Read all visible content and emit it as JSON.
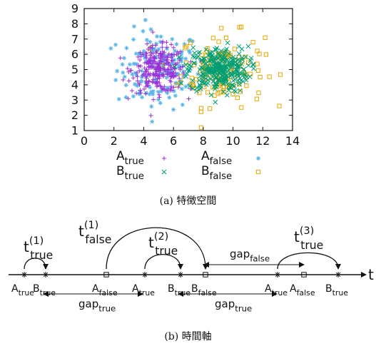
{
  "caption_a": "(a) 特徴空間",
  "caption_b": "(b) 時間軸",
  "chart_data": {
    "type": "scatter",
    "title": "",
    "xlabel": "",
    "ylabel": "",
    "xlim": [
      0,
      14
    ],
    "ylim": [
      1,
      9
    ],
    "xticks": [
      "0",
      "2",
      "4",
      "6",
      "8",
      "10",
      "12",
      "14"
    ],
    "yticks": [
      "1",
      "2",
      "3",
      "4",
      "5",
      "6",
      "7",
      "8",
      "9"
    ],
    "legend_position": "bottom",
    "grid": false,
    "series": [
      {
        "name": "A_true",
        "label_main": "A",
        "label_sub": "true",
        "marker": "plus",
        "color": "#9b30d9",
        "center": [
          5.0,
          5.0
        ],
        "spread": [
          0.9,
          0.75
        ],
        "count": 260
      },
      {
        "name": "B_true",
        "label_main": "B",
        "label_sub": "true",
        "marker": "cross",
        "color": "#009e73",
        "center": [
          9.0,
          5.0
        ],
        "spread": [
          1.0,
          0.75
        ],
        "count": 300
      },
      {
        "name": "A_false",
        "label_main": "A",
        "label_sub": "false",
        "marker": "star",
        "color": "#56b4e9",
        "center": [
          5.0,
          5.0
        ],
        "spread": [
          1.4,
          1.3
        ],
        "count": 150
      },
      {
        "name": "B_false",
        "label_main": "B",
        "label_sub": "false",
        "marker": "square",
        "color": "#e6a700",
        "center": [
          9.3,
          5.0
        ],
        "spread": [
          1.4,
          1.2
        ],
        "count": 130
      }
    ]
  },
  "timeline": {
    "axis_label": "t",
    "events": [
      {
        "main": "A",
        "sub": "true",
        "marker": "star"
      },
      {
        "main": "B",
        "sub": "true",
        "marker": "star"
      },
      {
        "main": "A",
        "sub": "false",
        "marker": "square"
      },
      {
        "main": "A",
        "sub": "true",
        "marker": "star"
      },
      {
        "main": "B",
        "sub": "true",
        "marker": "star"
      },
      {
        "main": "B",
        "sub": "false",
        "marker": "square"
      },
      {
        "main": "A",
        "sub": "true",
        "marker": "star"
      },
      {
        "main": "A",
        "sub": "false",
        "marker": "square"
      },
      {
        "main": "B",
        "sub": "true",
        "marker": "star"
      }
    ],
    "arcs": [
      {
        "main": "t",
        "sub": "true",
        "sup": "(1)"
      },
      {
        "main": "t",
        "sub": "false",
        "sup": "(1)"
      },
      {
        "main": "t",
        "sub": "true",
        "sup": "(2)"
      },
      {
        "main": "t",
        "sub": "true",
        "sup": "(3)"
      }
    ],
    "gaps": [
      {
        "main": "gap",
        "sub": "false"
      },
      {
        "main": "gap",
        "sub": "true"
      },
      {
        "main": "gap",
        "sub": "true"
      }
    ]
  }
}
